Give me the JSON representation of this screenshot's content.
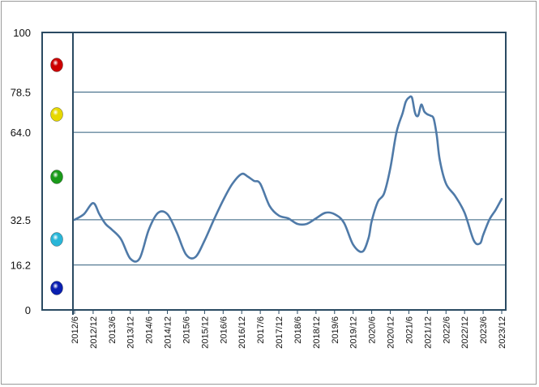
{
  "chart_data": {
    "type": "line",
    "title": "",
    "xlabel": "",
    "ylabel": "",
    "ylim": [
      0,
      100
    ],
    "y_ticks": [
      "0",
      "16.2",
      "32.5",
      "64.0",
      "78.5",
      "100"
    ],
    "y_tick_values": [
      0,
      16.2,
      32.5,
      64.0,
      78.5,
      100
    ],
    "grid": "horizontal",
    "x_ticks": [
      "2012/6",
      "2012/12",
      "2013/6",
      "2013/12",
      "2014/6",
      "2014/12",
      "2015/6",
      "2015/12",
      "2016/6",
      "2016/12",
      "2017/6",
      "2017/12",
      "2018/6",
      "2018/12",
      "2019/6",
      "2019/12",
      "2020/6",
      "2020/12",
      "2021/6",
      "2021/12",
      "2022/6",
      "2022/12",
      "2023/6",
      "2023/12"
    ],
    "indicator_dots": [
      {
        "name": "red-dot",
        "color": "#cc0000"
      },
      {
        "name": "yellow-dot",
        "color": "#e6d800"
      },
      {
        "name": "green-dot",
        "color": "#1a9a1a"
      },
      {
        "name": "cyan-dot",
        "color": "#29b6d8"
      },
      {
        "name": "blue-dot",
        "color": "#0a1fb0"
      }
    ],
    "line_color": "#4f7aa8",
    "series": [
      {
        "x": [
          "2012/6",
          "2012/9",
          "2012/12",
          "2013/2",
          "2013/4",
          "2013/6",
          "2013/9",
          "2013/12",
          "2014/3",
          "2014/6",
          "2014/9",
          "2014/12",
          "2015/3",
          "2015/6",
          "2015/9",
          "2015/12",
          "2016/3",
          "2016/6",
          "2016/9",
          "2016/12",
          "2017/2",
          "2017/4",
          "2017/6",
          "2017/9",
          "2017/12",
          "2018/3",
          "2018/6",
          "2018/9",
          "2018/12",
          "2019/3",
          "2019/6",
          "2019/9",
          "2019/12",
          "2020/3",
          "2020/5",
          "2020/6",
          "2020/8",
          "2020/10",
          "2020/12",
          "2021/2",
          "2021/4",
          "2021/5",
          "2021/6",
          "2021/7",
          "2021/8",
          "2021/9",
          "2021/10",
          "2021/11",
          "2021/12",
          "2022/1",
          "2022/2",
          "2022/3",
          "2022/4",
          "2022/6",
          "2022/9",
          "2022/12",
          "2023/3",
          "2023/5",
          "2023/6",
          "2023/8",
          "2023/10",
          "2023/12"
        ],
        "values": [
          32.5,
          34.5,
          38.5,
          34.5,
          31,
          29,
          25.5,
          18.5,
          18.5,
          29,
          35,
          34.5,
          28,
          20,
          19,
          25,
          32.5,
          39.5,
          45.5,
          49,
          48,
          46.5,
          45.5,
          37.5,
          34,
          33,
          31,
          31,
          33,
          35,
          34.5,
          31.5,
          23.5,
          21,
          26,
          32,
          39,
          42,
          51,
          64,
          71,
          75,
          76.5,
          76.5,
          71,
          70,
          74,
          71.5,
          70.5,
          70,
          69,
          63,
          54,
          45.5,
          41,
          35,
          25,
          24,
          27,
          32.5,
          36,
          40
        ]
      }
    ]
  }
}
